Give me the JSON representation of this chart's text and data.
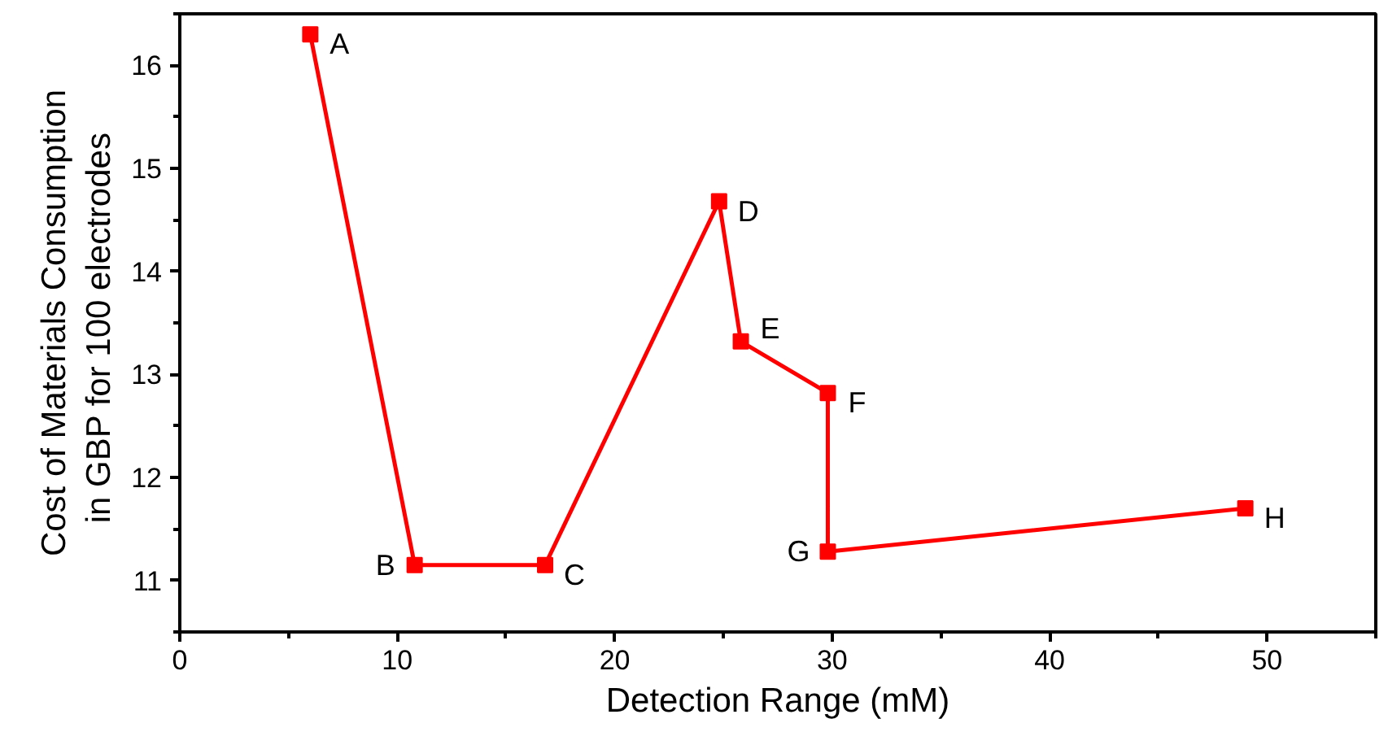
{
  "chart_data": {
    "type": "line",
    "xlabel": "Detection Range (mM)",
    "ylabel": "Cost of Materials Consumption\nin GBP  for 100 electrodes",
    "x": [
      6,
      10.8,
      16.8,
      24.8,
      25.8,
      29.8,
      29.8,
      49
    ],
    "series": [
      {
        "color": "#ff0000",
        "values": [
          16.3,
          11.15,
          11.15,
          14.68,
          13.32,
          12.82,
          11.28,
          11.7
        ]
      }
    ],
    "xlim": [
      0,
      55
    ],
    "ylim": [
      10.5,
      16.5
    ],
    "xticks": [
      0,
      10,
      20,
      30,
      40,
      50
    ],
    "yticks": [
      11,
      12,
      13,
      14,
      15,
      16
    ],
    "marker": "square",
    "line_style": "solid",
    "annotations": [
      {
        "text": "A",
        "x": 6,
        "y": 16.3
      },
      {
        "text": "B",
        "x": 10.8,
        "y": 11.15
      },
      {
        "text": "C",
        "x": 16.8,
        "y": 11.15
      },
      {
        "text": "D",
        "x": 24.8,
        "y": 14.68
      },
      {
        "text": "E",
        "x": 25.8,
        "y": 13.32
      },
      {
        "text": "F",
        "x": 29.8,
        "y": 12.82
      },
      {
        "text": "G",
        "x": 29.8,
        "y": 11.28
      },
      {
        "text": "H",
        "x": 49,
        "y": 11.7
      }
    ]
  }
}
